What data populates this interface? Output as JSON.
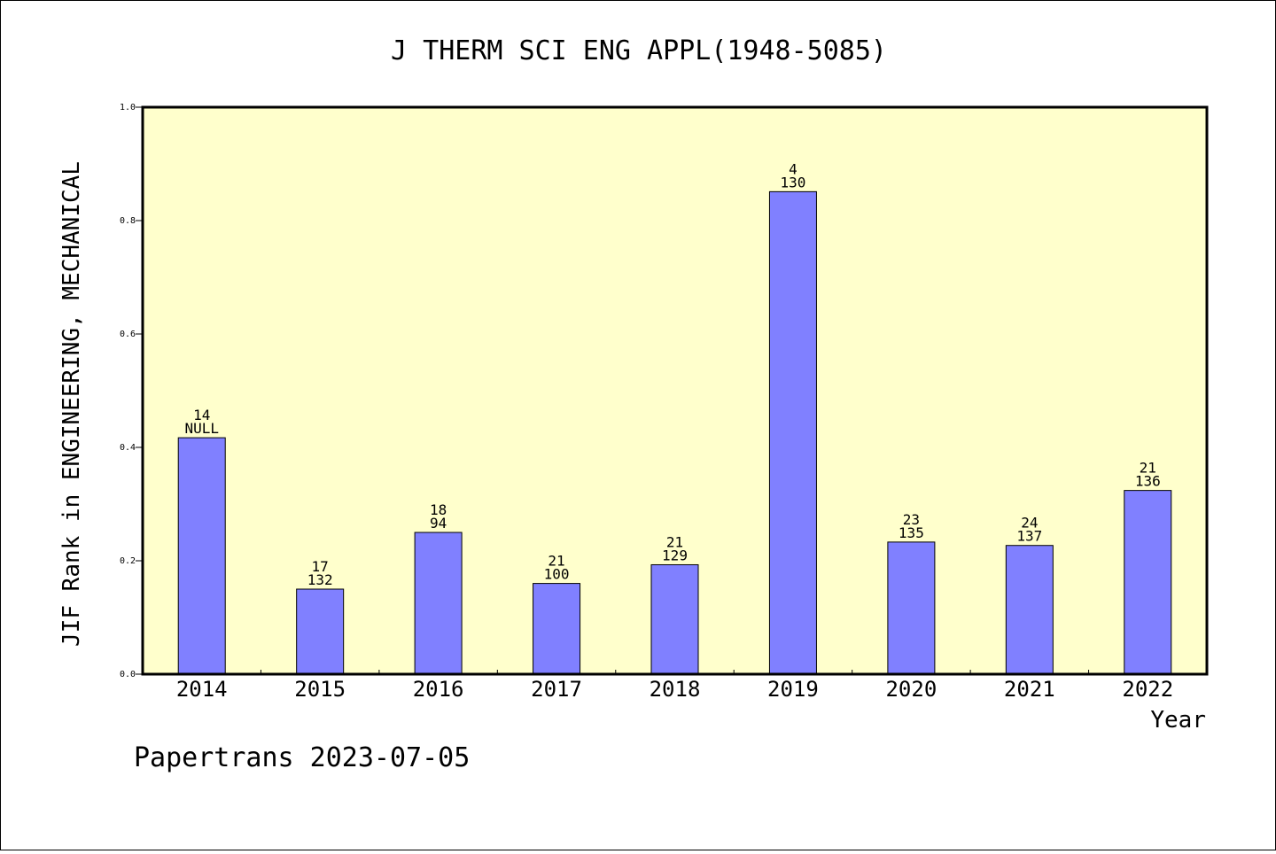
{
  "chart_data": {
    "type": "bar",
    "title": "J THERM SCI ENG APPL(1948-5085)",
    "xlabel": "Year",
    "ylabel": "JIF Rank in ENGINEERING, MECHANICAL",
    "ylim": [
      0,
      1.0
    ],
    "yticks": [
      "0.0",
      "0.2",
      "0.4",
      "0.6",
      "0.8",
      "1.0"
    ],
    "categories": [
      "2014",
      "2015",
      "2016",
      "2017",
      "2018",
      "2019",
      "2020",
      "2021",
      "2022"
    ],
    "values": [
      0.417,
      0.15,
      0.25,
      0.16,
      0.193,
      0.851,
      0.233,
      0.227,
      0.324
    ],
    "label_top": [
      "14",
      "17",
      "18",
      "21",
      "21",
      "4",
      "23",
      "24",
      "21"
    ],
    "label_bottom": [
      "NULL",
      "132",
      "94",
      "100",
      "129",
      "130",
      "135",
      "137",
      "136"
    ],
    "grid": false,
    "colors": {
      "bar": "#8080ff",
      "plot_background": "#ffffcc"
    }
  },
  "footer": "Papertrans 2023-07-05"
}
